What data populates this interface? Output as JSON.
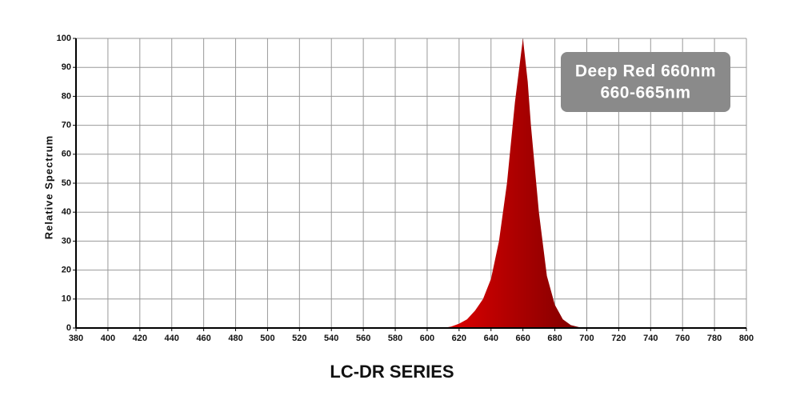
{
  "chart_data": {
    "type": "area",
    "title": "LC-DR SERIES",
    "y_label": "Relative Spectrum",
    "annotations": [
      "Deep Red 660nm",
      "660-665nm"
    ],
    "x": [
      610,
      615,
      620,
      625,
      630,
      635,
      640,
      645,
      650,
      655,
      660,
      663,
      665,
      670,
      675,
      680,
      685,
      690,
      695,
      700
    ],
    "values": [
      0,
      0.5,
      1.5,
      3,
      6,
      10,
      17,
      30,
      50,
      78,
      100,
      85,
      70,
      40,
      18,
      8,
      3,
      1,
      0.3,
      0
    ],
    "color": "#e00000",
    "xlim": [
      380,
      800
    ],
    "xticks": [
      380,
      400,
      420,
      440,
      460,
      480,
      500,
      520,
      540,
      560,
      580,
      600,
      620,
      640,
      660,
      680,
      700,
      720,
      740,
      760,
      780,
      800
    ],
    "ylim": [
      0,
      100
    ],
    "yticks": [
      0,
      10,
      20,
      30,
      40,
      50,
      60,
      70,
      80,
      90,
      100
    ],
    "grid": true
  }
}
